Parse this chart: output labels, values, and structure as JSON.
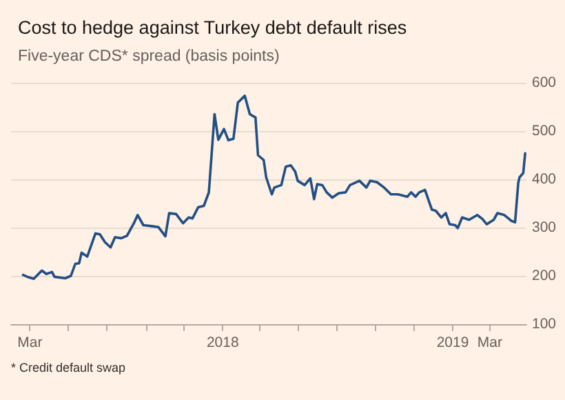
{
  "chart_data": {
    "type": "line",
    "title": "Cost to hedge against Turkey debt default rises",
    "subtitle": "Five-year CDS* spread (basis points)",
    "annotations": [
      "* Credit default swap"
    ],
    "x": [
      "2017-02-18",
      "2017-02-27",
      "2017-03-07",
      "2017-03-20",
      "2017-03-27",
      "2017-04-05",
      "2017-04-09",
      "2017-04-26",
      "2017-05-05",
      "2017-05-12",
      "2017-05-18",
      "2017-05-22",
      "2017-05-31",
      "2017-06-13",
      "2017-06-20",
      "2017-06-28",
      "2017-07-07",
      "2017-07-14",
      "2017-07-24",
      "2017-08-02",
      "2017-08-13",
      "2017-08-19",
      "2017-08-28",
      "2017-09-10",
      "2017-09-21",
      "2017-10-02",
      "2017-10-08",
      "2017-10-19",
      "2017-10-30",
      "2017-11-08",
      "2017-11-14",
      "2017-11-23",
      "2017-12-02",
      "2017-12-10",
      "2017-12-19",
      "2017-12-25",
      "2018-01-03",
      "2018-01-10",
      "2018-01-18",
      "2018-01-25",
      "2018-02-05",
      "2018-02-13",
      "2018-02-22",
      "2018-02-26",
      "2018-03-07",
      "2018-03-11",
      "2018-03-20",
      "2018-03-24",
      "2018-04-04",
      "2018-04-11",
      "2018-04-19",
      "2018-04-26",
      "2018-04-30",
      "2018-05-11",
      "2018-05-20",
      "2018-05-22",
      "2018-05-26",
      "2018-05-31",
      "2018-06-08",
      "2018-06-15",
      "2018-06-24",
      "2018-07-04",
      "2018-07-15",
      "2018-07-22",
      "2018-08-06",
      "2018-08-17",
      "2018-08-23",
      "2018-09-03",
      "2018-09-14",
      "2018-09-25",
      "2018-10-06",
      "2018-10-21",
      "2018-10-27",
      "2018-11-03",
      "2018-11-09",
      "2018-11-18",
      "2018-11-29",
      "2018-12-05",
      "2018-12-14",
      "2018-12-21",
      "2018-12-27",
      "2019-01-05",
      "2019-01-09",
      "2019-01-16",
      "2019-01-27",
      "2019-02-09",
      "2019-02-17",
      "2019-02-24",
      "2019-03-07",
      "2019-03-13",
      "2019-03-24",
      "2019-04-04",
      "2019-04-10",
      "2019-04-15",
      "2019-04-17",
      "2019-04-23",
      "2019-04-26"
    ],
    "series": [
      {
        "color": "#224f85",
        "values": [
          202,
          197,
          194,
          211,
          204,
          208,
          198,
          195,
          200,
          225,
          226,
          248,
          240,
          288,
          286,
          270,
          259,
          280,
          278,
          283,
          309,
          326,
          305,
          303,
          301,
          282,
          330,
          328,
          309,
          321,
          319,
          342,
          345,
          373,
          535,
          482,
          504,
          481,
          484,
          559,
          573,
          535,
          528,
          450,
          440,
          404,
          369,
          383,
          388,
          426,
          429,
          416,
          397,
          388,
          402,
          388,
          359,
          390,
          388,
          373,
          362,
          371,
          373,
          388,
          397,
          383,
          397,
          394,
          383,
          369,
          369,
          364,
          373,
          364,
          373,
          378,
          337,
          335,
          321,
          330,
          307,
          305,
          299,
          321,
          316,
          326,
          318,
          307,
          316,
          330,
          326,
          314,
          311,
          392,
          404,
          413,
          454
        ]
      }
    ],
    "xlim": [
      "2017-01-30",
      "2019-04-28"
    ],
    "xticks": [
      {
        "value": "2017-03-01",
        "label": "Mar"
      },
      {
        "value": "2017-05-01",
        "label": null
      },
      {
        "value": "2017-07-01",
        "label": null
      },
      {
        "value": "2017-09-01",
        "label": null
      },
      {
        "value": "2017-11-01",
        "label": null
      },
      {
        "value": "2018-01-01",
        "label": "2018"
      },
      {
        "value": "2018-03-01",
        "label": null
      },
      {
        "value": "2018-05-01",
        "label": null
      },
      {
        "value": "2018-07-01",
        "label": null
      },
      {
        "value": "2018-09-01",
        "label": null
      },
      {
        "value": "2018-11-01",
        "label": null
      },
      {
        "value": "2019-01-01",
        "label": "2019"
      },
      {
        "value": "2019-03-01",
        "label": "Mar"
      }
    ],
    "ylim": [
      100,
      600
    ],
    "yticks": [
      100,
      200,
      300,
      400,
      500,
      600
    ],
    "grid": "y",
    "marker": "none",
    "line_style": "solid"
  }
}
